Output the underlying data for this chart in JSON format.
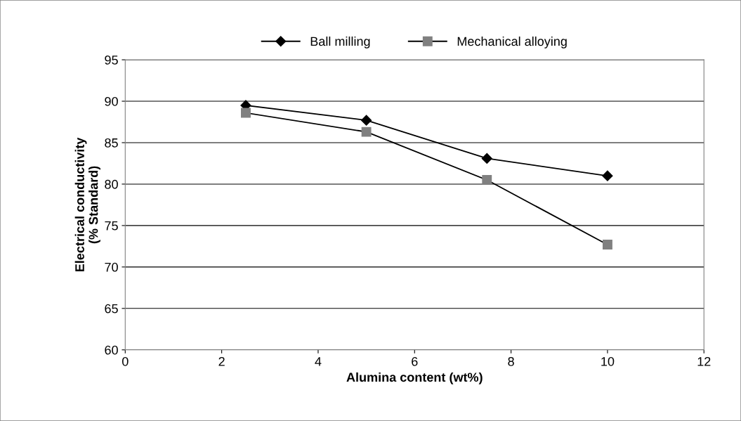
{
  "chart_data": {
    "type": "line",
    "xlabel": "Alumina content (wt%)",
    "ylabel": "Electrical conductivity\n(% Standard)",
    "x": [
      2.5,
      5,
      7.5,
      10
    ],
    "series": [
      {
        "name": "Ball milling",
        "color": "#000000",
        "marker": "diamond",
        "values": [
          89.5,
          87.7,
          83.1,
          81.0
        ]
      },
      {
        "name": "Mechanical alloying",
        "color": "#808080",
        "marker": "square",
        "values": [
          88.6,
          86.3,
          80.5,
          72.7
        ]
      }
    ],
    "xlim": [
      0,
      12
    ],
    "xticks": [
      0,
      2,
      4,
      6,
      8,
      10,
      12
    ],
    "ylim": [
      60,
      95
    ],
    "yticks": [
      60,
      65,
      70,
      75,
      80,
      85,
      90,
      95
    ],
    "grid": "y",
    "legend": "top",
    "line_style": "solid"
  }
}
